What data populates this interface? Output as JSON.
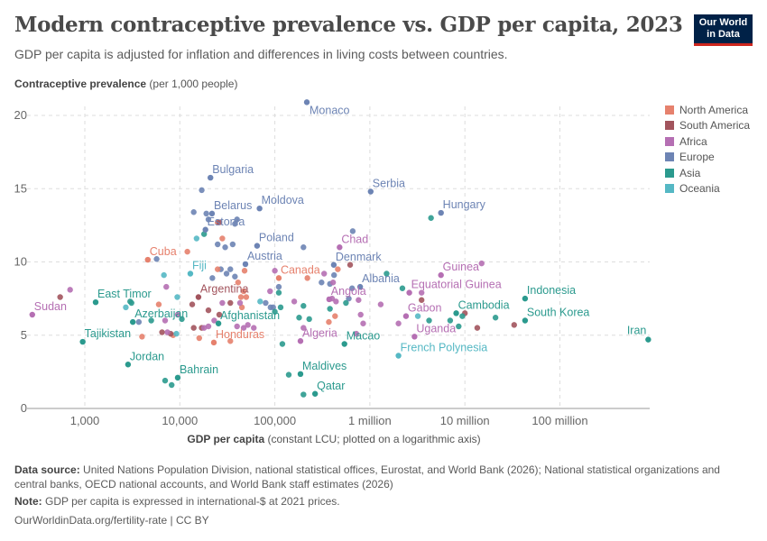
{
  "header": {
    "title": "Modern contraceptive prevalence vs. GDP per capita, 2023",
    "subtitle": "GDP per capita is adjusted for inflation and differences in living costs between countries.",
    "logo": "Our World in Data"
  },
  "footer": {
    "source_label": "Data source:",
    "source_text": " United Nations Population Division, national statistical offices, Eurostat, and World Bank (2026); National statistical organizations and central banks, OECD national accounts, and World Bank staff estimates (2026)",
    "note_label": "Note:",
    "note_text": " GDP per capita is expressed in international-$ at 2021 prices.",
    "url": "OurWorldinData.org/fertility-rate | CC BY"
  },
  "chart_data": {
    "type": "scatter",
    "title": "Modern contraceptive prevalence vs. GDP per capita, 2023",
    "ylabel_bold": "Contraceptive prevalence",
    "ylabel_rest": " (per 1,000 people)",
    "xlabel_bold": "GDP per capita",
    "xlabel_rest": " (constant LCU; plotted on a logarithmic axis)",
    "xscale": "log",
    "xlim": [
      250,
      900000000
    ],
    "ylim": [
      0,
      21
    ],
    "xticks": [
      {
        "v": 1000,
        "label": "1,000"
      },
      {
        "v": 10000,
        "label": "10,000"
      },
      {
        "v": 100000,
        "label": "100,000"
      },
      {
        "v": 1000000,
        "label": "1 million"
      },
      {
        "v": 10000000,
        "label": "10 million"
      },
      {
        "v": 100000000,
        "label": "100 million"
      }
    ],
    "yticks": [
      0,
      5,
      10,
      15,
      20
    ],
    "grid": true,
    "legend_position": "right",
    "regions": [
      {
        "name": "North America",
        "color": "#e6816d"
      },
      {
        "name": "South America",
        "color": "#a2545d"
      },
      {
        "name": "Africa",
        "color": "#b56fb3"
      },
      {
        "name": "Europe",
        "color": "#6d84b4"
      },
      {
        "name": "Asia",
        "color": "#2b9a8e"
      },
      {
        "name": "Oceania",
        "color": "#55b8c4"
      }
    ],
    "labeled_points": [
      {
        "name": "Monaco",
        "region": "Europe",
        "x": 217000,
        "y": 20.9
      },
      {
        "name": "Bulgaria",
        "region": "Europe",
        "x": 21000,
        "y": 15.75
      },
      {
        "name": "Serbia",
        "region": "Europe",
        "x": 1020000,
        "y": 14.8
      },
      {
        "name": "Hungary",
        "region": "Europe",
        "x": 5600000,
        "y": 13.35
      },
      {
        "name": "Moldova",
        "region": "Europe",
        "x": 69000,
        "y": 13.65
      },
      {
        "name": "Belarus",
        "region": "Europe",
        "x": 21800,
        "y": 13.3
      },
      {
        "name": "Estonia",
        "region": "Europe",
        "x": 18600,
        "y": 12.2
      },
      {
        "name": "Poland",
        "region": "Europe",
        "x": 65000,
        "y": 11.1
      },
      {
        "name": "Austria",
        "region": "Europe",
        "x": 49000,
        "y": 9.85
      },
      {
        "name": "Denmark",
        "region": "Europe",
        "x": 417000,
        "y": 9.8
      },
      {
        "name": "Albania",
        "region": "Europe",
        "x": 790000,
        "y": 8.3
      },
      {
        "name": "Chad",
        "region": "Africa",
        "x": 480000,
        "y": 11.0
      },
      {
        "name": "Angola",
        "region": "Africa",
        "x": 373000,
        "y": 7.45
      },
      {
        "name": "Equatorial Guinea",
        "region": "Africa",
        "x": 2600000,
        "y": 7.9
      },
      {
        "name": "Guinea",
        "region": "Africa",
        "x": 5600000,
        "y": 9.1
      },
      {
        "name": "Gabon",
        "region": "Africa",
        "x": 2400000,
        "y": 6.3
      },
      {
        "name": "Uganda",
        "region": "Africa",
        "x": 2950000,
        "y": 4.9
      },
      {
        "name": "Algeria",
        "region": "Africa",
        "x": 186000,
        "y": 4.6
      },
      {
        "name": "Sudan",
        "region": "Africa",
        "x": 280,
        "y": 6.4
      },
      {
        "name": "Cambodia",
        "region": "Asia",
        "x": 8100000,
        "y": 6.5
      },
      {
        "name": "Indonesia",
        "region": "Asia",
        "x": 43000000,
        "y": 7.5
      },
      {
        "name": "South Korea",
        "region": "Asia",
        "x": 43000000,
        "y": 6.0
      },
      {
        "name": "Iran",
        "region": "Asia",
        "x": 850000000,
        "y": 4.7
      },
      {
        "name": "Macao",
        "region": "Asia",
        "x": 540000,
        "y": 4.4
      },
      {
        "name": "Maldives",
        "region": "Asia",
        "x": 186000,
        "y": 2.35
      },
      {
        "name": "Qatar",
        "region": "Asia",
        "x": 265000,
        "y": 1.0
      },
      {
        "name": "Afghanistan",
        "region": "Asia",
        "x": 25500,
        "y": 5.8
      },
      {
        "name": "East Timor",
        "region": "Asia",
        "x": 1300,
        "y": 7.25
      },
      {
        "name": "Azerbaijan",
        "region": "Asia",
        "x": 3200,
        "y": 5.9
      },
      {
        "name": "Tajikistan",
        "region": "Asia",
        "x": 950,
        "y": 4.55
      },
      {
        "name": "Jordan",
        "region": "Asia",
        "x": 2850,
        "y": 3.0
      },
      {
        "name": "Bahrain",
        "region": "Asia",
        "x": 9500,
        "y": 2.1
      },
      {
        "name": "French Polynesia",
        "region": "Oceania",
        "x": 2000000,
        "y": 3.6
      },
      {
        "name": "Fiji",
        "region": "Oceania",
        "x": 12900,
        "y": 9.2
      },
      {
        "name": "Cuba",
        "region": "North America",
        "x": 4600,
        "y": 10.15
      },
      {
        "name": "Canada",
        "region": "North America",
        "x": 110000,
        "y": 8.9
      },
      {
        "name": "Honduras",
        "region": "North America",
        "x": 22800,
        "y": 4.5
      },
      {
        "name": "Argentina",
        "region": "South America",
        "x": 15700,
        "y": 7.6
      }
    ],
    "other_points": {
      "Europe": [
        [
          17000,
          14.9
        ],
        [
          14000,
          13.4
        ],
        [
          19000,
          13.3
        ],
        [
          20000,
          12.9
        ],
        [
          40000,
          12.9
        ],
        [
          38000,
          12.6
        ],
        [
          25000,
          11.2
        ],
        [
          30000,
          11.0
        ],
        [
          36000,
          11.2
        ],
        [
          200000,
          11.0
        ],
        [
          660000,
          12.1
        ],
        [
          27000,
          9.5
        ],
        [
          34000,
          9.5
        ],
        [
          31000,
          9.2
        ],
        [
          38000,
          9.0
        ],
        [
          22000,
          8.9
        ],
        [
          420000,
          9.1
        ],
        [
          380000,
          8.5
        ],
        [
          110000,
          8.3
        ],
        [
          600000,
          7.5
        ],
        [
          310000,
          8.6
        ],
        [
          80000,
          7.2
        ],
        [
          90000,
          6.9
        ],
        [
          5700,
          10.2
        ],
        [
          3700,
          5.9
        ],
        [
          650000,
          8.2
        ],
        [
          96000,
          6.9
        ]
      ],
      "North America": [
        [
          25000,
          12.7
        ],
        [
          28000,
          11.6
        ],
        [
          12000,
          10.7
        ],
        [
          25000,
          9.5
        ],
        [
          48000,
          9.4
        ],
        [
          41000,
          8.6
        ],
        [
          47000,
          8.0
        ],
        [
          50000,
          7.6
        ],
        [
          44000,
          7.6
        ],
        [
          45000,
          6.9
        ],
        [
          8500,
          5.0
        ],
        [
          16000,
          4.8
        ],
        [
          34000,
          4.6
        ],
        [
          460000,
          9.5
        ],
        [
          430000,
          6.3
        ],
        [
          220000,
          8.9
        ],
        [
          370000,
          5.9
        ],
        [
          6000,
          7.1
        ],
        [
          4000,
          4.9
        ]
      ],
      "South America": [
        [
          26000,
          12.7
        ],
        [
          550,
          7.6
        ],
        [
          6500,
          5.2
        ],
        [
          8000,
          5.1
        ],
        [
          17000,
          5.5
        ],
        [
          14000,
          5.5
        ],
        [
          20000,
          6.7
        ],
        [
          13500,
          7.1
        ],
        [
          34000,
          7.2
        ],
        [
          26000,
          6.4
        ],
        [
          620000,
          9.8
        ],
        [
          3500000,
          7.4
        ],
        [
          10000000,
          6.5
        ],
        [
          13500000,
          5.5
        ],
        [
          33000000,
          5.7
        ]
      ],
      "Africa": [
        [
          700,
          8.1
        ],
        [
          7200,
          8.3
        ],
        [
          7000,
          6.0
        ],
        [
          7400,
          5.2
        ],
        [
          9500,
          6.4
        ],
        [
          18000,
          5.5
        ],
        [
          20000,
          5.6
        ],
        [
          23000,
          6.0
        ],
        [
          40000,
          5.6
        ],
        [
          47000,
          5.5
        ],
        [
          52000,
          5.7
        ],
        [
          100000,
          9.4
        ],
        [
          89000,
          8.0
        ],
        [
          60000,
          5.5
        ],
        [
          43000,
          7.2
        ],
        [
          28000,
          7.2
        ],
        [
          330000,
          9.2
        ],
        [
          410000,
          8.6
        ],
        [
          400000,
          7.5
        ],
        [
          440000,
          7.3
        ],
        [
          760000,
          7.4
        ],
        [
          1300000,
          7.1
        ],
        [
          800000,
          6.4
        ],
        [
          850000,
          5.8
        ],
        [
          720000,
          5.1
        ],
        [
          2000000,
          5.8
        ],
        [
          15000000,
          9.9
        ],
        [
          3500000,
          7.9
        ],
        [
          200000,
          5.5
        ],
        [
          160000,
          7.3
        ]
      ],
      "Asia": [
        [
          3000,
          7.3
        ],
        [
          3100,
          7.2
        ],
        [
          5000,
          6.0
        ],
        [
          10500,
          6.1
        ],
        [
          18000,
          11.9
        ],
        [
          100000,
          6.6
        ],
        [
          115000,
          6.9
        ],
        [
          180000,
          6.2
        ],
        [
          230000,
          6.1
        ],
        [
          120000,
          4.4
        ],
        [
          140000,
          2.3
        ],
        [
          200000,
          0.95
        ],
        [
          8200,
          1.6
        ],
        [
          7000,
          1.9
        ],
        [
          110000,
          7.9
        ],
        [
          1500000,
          9.2
        ],
        [
          4400000,
          13.0
        ],
        [
          2200000,
          8.2
        ],
        [
          7000000,
          6.0
        ],
        [
          4200000,
          6.0
        ],
        [
          9400000,
          6.3
        ],
        [
          21000000,
          6.2
        ],
        [
          8600000,
          5.6
        ],
        [
          380000,
          6.8
        ],
        [
          560000,
          7.2
        ],
        [
          200000,
          7.0
        ]
      ],
      "Oceania": [
        [
          6800,
          9.1
        ],
        [
          9400,
          7.6
        ],
        [
          9200,
          5.1
        ],
        [
          2700,
          6.9
        ],
        [
          15000,
          11.6
        ],
        [
          70000,
          7.3
        ],
        [
          3200000,
          6.3
        ]
      ]
    }
  }
}
